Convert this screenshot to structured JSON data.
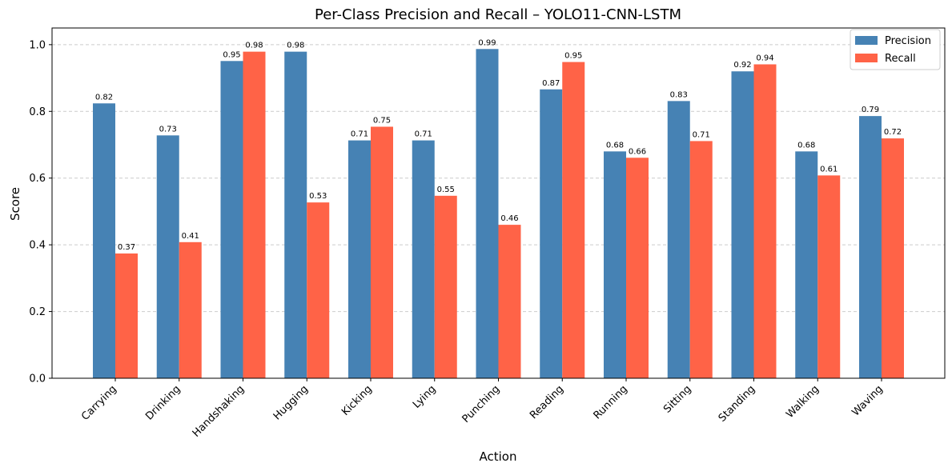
{
  "chart_data": {
    "type": "bar",
    "title": "Per-Class Precision and Recall – YOLO11-CNN-LSTM",
    "xlabel": "Action",
    "ylabel": "Score",
    "ylim": [
      0,
      1.05
    ],
    "yticks": [
      "0.0",
      "0.2",
      "0.4",
      "0.6",
      "0.8",
      "1.0"
    ],
    "categories": [
      "Carrying",
      "Drinking",
      "Handshaking",
      "Hugging",
      "Kicking",
      "Lying",
      "Punching",
      "Reading",
      "Running",
      "Sitting",
      "Standing",
      "Walking",
      "Waving"
    ],
    "series": [
      {
        "name": "Precision",
        "color": "#4682b4",
        "values": [
          0.824,
          0.728,
          0.951,
          0.979,
          0.713,
          0.713,
          0.987,
          0.866,
          0.68,
          0.831,
          0.92,
          0.68,
          0.786
        ],
        "labels": [
          "0.82",
          "0.73",
          "0.95",
          "0.98",
          "0.71",
          "0.71",
          "0.99",
          "0.87",
          "0.68",
          "0.83",
          "0.92",
          "0.68",
          "0.79"
        ]
      },
      {
        "name": "Recall",
        "color": "#ff6347",
        "values": [
          0.374,
          0.408,
          0.979,
          0.527,
          0.754,
          0.547,
          0.46,
          0.948,
          0.661,
          0.711,
          0.941,
          0.608,
          0.719
        ],
        "labels": [
          "0.37",
          "0.41",
          "0.98",
          "0.53",
          "0.75",
          "0.55",
          "0.46",
          "0.95",
          "0.66",
          "0.71",
          "0.94",
          "0.61",
          "0.72"
        ]
      }
    ],
    "grid": "y-dashed",
    "legend_position": "top-right"
  }
}
